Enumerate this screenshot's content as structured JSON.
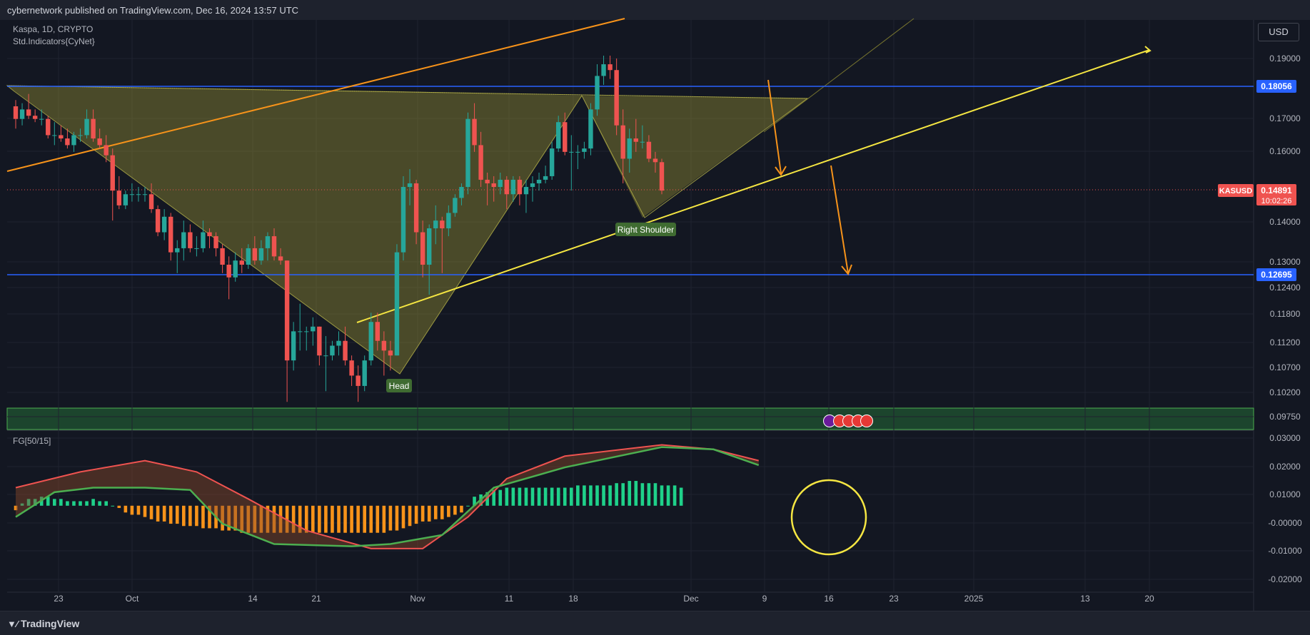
{
  "publisher_line": "cybernetwork published on TradingView.com, Dec 16, 2024 13:57 UTC",
  "brand": "TradingView",
  "currency_button": "USD",
  "symbol_line": "Kaspa, 1D, CRYPTO",
  "indicator_line": "Std.Indicators{CyNet}",
  "oscillator_name": "FG[50/15]",
  "colors": {
    "background": "#131722",
    "up_candle": "#26a69a",
    "down_candle": "#ef5350",
    "pattern_fill": "#8d8a32",
    "orange_line": "#f7931a",
    "yellow_line": "#f5e642",
    "blue_level": "#2962ff",
    "histogram_positive": "#1fd18a",
    "histogram_negative": "#f7931a",
    "osc_red_line": "#ef5350",
    "osc_green_line": "#4caf50"
  },
  "price_axis": {
    "ticks": [
      "0.19000",
      "0.17000",
      "0.16000",
      "0.14000",
      "0.13000",
      "0.12400",
      "0.11800",
      "0.11200",
      "0.10700",
      "0.10200",
      "0.09750"
    ],
    "level_labels": [
      {
        "text": "0.18056",
        "color": "#2962ff"
      },
      {
        "text": "0.12695",
        "color": "#2962ff"
      }
    ],
    "last_price": {
      "symbol": "KASUSD",
      "price": "0.14891",
      "countdown": "10:02:26",
      "color": "#ef5350"
    }
  },
  "osc_axis": {
    "ticks": [
      "0.03000",
      "0.02000",
      "0.01000",
      "-0.00000",
      "-0.01000",
      "-0.02000"
    ]
  },
  "time_axis": {
    "labels": [
      "23",
      "Oct",
      "14",
      "21",
      "Nov",
      "11",
      "18",
      "Dec",
      "9",
      "16",
      "23",
      "2025",
      "13",
      "20"
    ]
  },
  "annotations": {
    "head": "Head",
    "right_shoulder": "Right Shoulder"
  },
  "chart_data": [
    {
      "type": "candlestick",
      "symbol": "KASUSD",
      "interval": "1D",
      "levels": [
        0.18056,
        0.12695
      ],
      "last_price": 0.14891,
      "candles": [
        {
          "o": 0.174,
          "h": 0.176,
          "l": 0.167,
          "c": 0.17
        },
        {
          "o": 0.17,
          "h": 0.175,
          "l": 0.168,
          "c": 0.173
        },
        {
          "o": 0.173,
          "h": 0.178,
          "l": 0.17,
          "c": 0.171
        },
        {
          "o": 0.171,
          "h": 0.173,
          "l": 0.169,
          "c": 0.17
        },
        {
          "o": 0.17,
          "h": 0.173,
          "l": 0.168,
          "c": 0.17
        },
        {
          "o": 0.17,
          "h": 0.171,
          "l": 0.164,
          "c": 0.165
        },
        {
          "o": 0.165,
          "h": 0.169,
          "l": 0.162,
          "c": 0.165
        },
        {
          "o": 0.165,
          "h": 0.168,
          "l": 0.163,
          "c": 0.164
        },
        {
          "o": 0.164,
          "h": 0.167,
          "l": 0.161,
          "c": 0.162
        },
        {
          "o": 0.162,
          "h": 0.166,
          "l": 0.16,
          "c": 0.165
        },
        {
          "o": 0.165,
          "h": 0.167,
          "l": 0.163,
          "c": 0.165
        },
        {
          "o": 0.165,
          "h": 0.173,
          "l": 0.164,
          "c": 0.17
        },
        {
          "o": 0.17,
          "h": 0.173,
          "l": 0.163,
          "c": 0.164
        },
        {
          "o": 0.164,
          "h": 0.167,
          "l": 0.161,
          "c": 0.162
        },
        {
          "o": 0.162,
          "h": 0.165,
          "l": 0.157,
          "c": 0.159
        },
        {
          "o": 0.159,
          "h": 0.161,
          "l": 0.141,
          "c": 0.149
        },
        {
          "o": 0.149,
          "h": 0.153,
          "l": 0.144,
          "c": 0.145
        },
        {
          "o": 0.145,
          "h": 0.149,
          "l": 0.144,
          "c": 0.148
        },
        {
          "o": 0.148,
          "h": 0.151,
          "l": 0.146,
          "c": 0.148
        },
        {
          "o": 0.148,
          "h": 0.15,
          "l": 0.146,
          "c": 0.148
        },
        {
          "o": 0.148,
          "h": 0.15,
          "l": 0.146,
          "c": 0.148
        },
        {
          "o": 0.148,
          "h": 0.151,
          "l": 0.143,
          "c": 0.144
        },
        {
          "o": 0.144,
          "h": 0.145,
          "l": 0.137,
          "c": 0.138
        },
        {
          "o": 0.138,
          "h": 0.144,
          "l": 0.136,
          "c": 0.142
        },
        {
          "o": 0.142,
          "h": 0.143,
          "l": 0.131,
          "c": 0.133
        },
        {
          "o": 0.133,
          "h": 0.136,
          "l": 0.128,
          "c": 0.134
        },
        {
          "o": 0.134,
          "h": 0.141,
          "l": 0.131,
          "c": 0.138
        },
        {
          "o": 0.138,
          "h": 0.14,
          "l": 0.133,
          "c": 0.134
        },
        {
          "o": 0.134,
          "h": 0.137,
          "l": 0.132,
          "c": 0.134
        },
        {
          "o": 0.134,
          "h": 0.141,
          "l": 0.133,
          "c": 0.138
        },
        {
          "o": 0.138,
          "h": 0.139,
          "l": 0.134,
          "c": 0.137
        },
        {
          "o": 0.137,
          "h": 0.138,
          "l": 0.132,
          "c": 0.134
        },
        {
          "o": 0.134,
          "h": 0.135,
          "l": 0.128,
          "c": 0.13
        },
        {
          "o": 0.13,
          "h": 0.132,
          "l": 0.122,
          "c": 0.127
        },
        {
          "o": 0.127,
          "h": 0.133,
          "l": 0.126,
          "c": 0.131
        },
        {
          "o": 0.131,
          "h": 0.134,
          "l": 0.128,
          "c": 0.13
        },
        {
          "o": 0.13,
          "h": 0.135,
          "l": 0.129,
          "c": 0.134
        },
        {
          "o": 0.134,
          "h": 0.137,
          "l": 0.13,
          "c": 0.131
        },
        {
          "o": 0.131,
          "h": 0.136,
          "l": 0.13,
          "c": 0.134
        },
        {
          "o": 0.134,
          "h": 0.138,
          "l": 0.131,
          "c": 0.137
        },
        {
          "o": 0.137,
          "h": 0.139,
          "l": 0.131,
          "c": 0.132
        },
        {
          "o": 0.132,
          "h": 0.134,
          "l": 0.13,
          "c": 0.131
        },
        {
          "o": 0.131,
          "h": 0.131,
          "l": 0.101,
          "c": 0.109
        },
        {
          "o": 0.109,
          "h": 0.117,
          "l": 0.107,
          "c": 0.115
        },
        {
          "o": 0.115,
          "h": 0.121,
          "l": 0.111,
          "c": 0.115
        },
        {
          "o": 0.115,
          "h": 0.116,
          "l": 0.111,
          "c": 0.115
        },
        {
          "o": 0.115,
          "h": 0.118,
          "l": 0.112,
          "c": 0.116
        },
        {
          "o": 0.116,
          "h": 0.116,
          "l": 0.108,
          "c": 0.11
        },
        {
          "o": 0.11,
          "h": 0.114,
          "l": 0.103,
          "c": 0.11
        },
        {
          "o": 0.11,
          "h": 0.113,
          "l": 0.109,
          "c": 0.112
        },
        {
          "o": 0.112,
          "h": 0.115,
          "l": 0.11,
          "c": 0.113
        },
        {
          "o": 0.113,
          "h": 0.116,
          "l": 0.108,
          "c": 0.109
        },
        {
          "o": 0.109,
          "h": 0.11,
          "l": 0.104,
          "c": 0.106
        },
        {
          "o": 0.106,
          "h": 0.108,
          "l": 0.101,
          "c": 0.104
        },
        {
          "o": 0.104,
          "h": 0.11,
          "l": 0.103,
          "c": 0.109
        },
        {
          "o": 0.109,
          "h": 0.119,
          "l": 0.108,
          "c": 0.117
        },
        {
          "o": 0.117,
          "h": 0.119,
          "l": 0.111,
          "c": 0.113
        },
        {
          "o": 0.113,
          "h": 0.115,
          "l": 0.106,
          "c": 0.111
        },
        {
          "o": 0.111,
          "h": 0.113,
          "l": 0.107,
          "c": 0.11
        },
        {
          "o": 0.11,
          "h": 0.135,
          "l": 0.11,
          "c": 0.133
        },
        {
          "o": 0.133,
          "h": 0.153,
          "l": 0.131,
          "c": 0.15
        },
        {
          "o": 0.15,
          "h": 0.155,
          "l": 0.145,
          "c": 0.151
        },
        {
          "o": 0.151,
          "h": 0.152,
          "l": 0.135,
          "c": 0.138
        },
        {
          "o": 0.138,
          "h": 0.141,
          "l": 0.127,
          "c": 0.13
        },
        {
          "o": 0.13,
          "h": 0.14,
          "l": 0.123,
          "c": 0.139
        },
        {
          "o": 0.139,
          "h": 0.145,
          "l": 0.135,
          "c": 0.141
        },
        {
          "o": 0.141,
          "h": 0.142,
          "l": 0.128,
          "c": 0.139
        },
        {
          "o": 0.139,
          "h": 0.145,
          "l": 0.137,
          "c": 0.143
        },
        {
          "o": 0.143,
          "h": 0.148,
          "l": 0.142,
          "c": 0.147
        },
        {
          "o": 0.147,
          "h": 0.151,
          "l": 0.145,
          "c": 0.15
        },
        {
          "o": 0.15,
          "h": 0.172,
          "l": 0.148,
          "c": 0.17
        },
        {
          "o": 0.17,
          "h": 0.175,
          "l": 0.16,
          "c": 0.162
        },
        {
          "o": 0.162,
          "h": 0.166,
          "l": 0.15,
          "c": 0.152
        },
        {
          "o": 0.152,
          "h": 0.154,
          "l": 0.145,
          "c": 0.151
        },
        {
          "o": 0.151,
          "h": 0.153,
          "l": 0.146,
          "c": 0.15
        },
        {
          "o": 0.15,
          "h": 0.154,
          "l": 0.148,
          "c": 0.152
        },
        {
          "o": 0.152,
          "h": 0.153,
          "l": 0.144,
          "c": 0.148
        },
        {
          "o": 0.148,
          "h": 0.153,
          "l": 0.146,
          "c": 0.152
        },
        {
          "o": 0.152,
          "h": 0.153,
          "l": 0.145,
          "c": 0.148
        },
        {
          "o": 0.148,
          "h": 0.152,
          "l": 0.143,
          "c": 0.15
        },
        {
          "o": 0.15,
          "h": 0.153,
          "l": 0.146,
          "c": 0.151
        },
        {
          "o": 0.151,
          "h": 0.154,
          "l": 0.149,
          "c": 0.152
        },
        {
          "o": 0.152,
          "h": 0.156,
          "l": 0.151,
          "c": 0.153
        },
        {
          "o": 0.153,
          "h": 0.163,
          "l": 0.152,
          "c": 0.161
        },
        {
          "o": 0.161,
          "h": 0.171,
          "l": 0.16,
          "c": 0.169
        },
        {
          "o": 0.169,
          "h": 0.172,
          "l": 0.159,
          "c": 0.16
        },
        {
          "o": 0.16,
          "h": 0.165,
          "l": 0.149,
          "c": 0.16
        },
        {
          "o": 0.16,
          "h": 0.162,
          "l": 0.155,
          "c": 0.16
        },
        {
          "o": 0.16,
          "h": 0.163,
          "l": 0.158,
          "c": 0.161
        },
        {
          "o": 0.161,
          "h": 0.175,
          "l": 0.159,
          "c": 0.173
        },
        {
          "o": 0.173,
          "h": 0.188,
          "l": 0.171,
          "c": 0.184
        },
        {
          "o": 0.184,
          "h": 0.191,
          "l": 0.181,
          "c": 0.188
        },
        {
          "o": 0.188,
          "h": 0.191,
          "l": 0.183,
          "c": 0.186
        },
        {
          "o": 0.186,
          "h": 0.19,
          "l": 0.165,
          "c": 0.168
        },
        {
          "o": 0.168,
          "h": 0.173,
          "l": 0.151,
          "c": 0.158
        },
        {
          "o": 0.158,
          "h": 0.167,
          "l": 0.154,
          "c": 0.164
        },
        {
          "o": 0.164,
          "h": 0.17,
          "l": 0.16,
          "c": 0.163
        },
        {
          "o": 0.163,
          "h": 0.168,
          "l": 0.161,
          "c": 0.163
        },
        {
          "o": 0.163,
          "h": 0.165,
          "l": 0.157,
          "c": 0.158
        },
        {
          "o": 0.158,
          "h": 0.16,
          "l": 0.154,
          "c": 0.157
        },
        {
          "o": 0.157,
          "h": 0.158,
          "l": 0.148,
          "c": 0.149
        }
      ],
      "pattern": {
        "name": "inverse head and shoulders",
        "labels": [
          "Head",
          "Right Shoulder"
        ],
        "head_low": 0.106,
        "right_shoulder_low": 0.141,
        "neckline": [
          {
            "bar": 0,
            "price": 0.176
          },
          {
            "bar": 100,
            "price": 0.177
          }
        ]
      },
      "trendlines": [
        {
          "name": "orange",
          "points": [
            {
              "bar": 0,
              "price": 0.154
            },
            {
              "bar": 90,
              "price": 0.2
            }
          ]
        },
        {
          "name": "yellow",
          "points": [
            {
              "bar": 43,
              "price": 0.117
            },
            {
              "bar": 102,
              "price": 0.163
            }
          ]
        }
      ],
      "projected_arrows": [
        {
          "name": "yellow",
          "from": {
            "bar": 43,
            "price": 0.117
          },
          "to": {
            "bar": 141,
            "price": 0.193
          }
        },
        {
          "name": "orange-drop",
          "from": {
            "bar": 102,
            "price": 0.157
          },
          "to": {
            "bar": 105,
            "price": 0.127
          }
        }
      ]
    },
    {
      "type": "oscillator",
      "name": "FG[50/15]",
      "ylim": [
        -0.0235,
        0.0305
      ],
      "histogram": [
        -0.002,
        0.001,
        0.003,
        0.003,
        0.004,
        0.004,
        0.003,
        0.003,
        0.002,
        0.002,
        0.002,
        0.002,
        0.003,
        0.002,
        0.002,
        0.0,
        -0.001,
        -0.003,
        -0.004,
        -0.004,
        -0.005,
        -0.006,
        -0.007,
        -0.007,
        -0.008,
        -0.008,
        -0.009,
        -0.009,
        -0.009,
        -0.01,
        -0.01,
        -0.01,
        -0.011,
        -0.011,
        -0.011,
        -0.012,
        -0.012,
        -0.012,
        -0.012,
        -0.012,
        -0.012,
        -0.012,
        -0.012,
        -0.012,
        -0.012,
        -0.012,
        -0.012,
        -0.012,
        -0.012,
        -0.012,
        -0.012,
        -0.012,
        -0.012,
        -0.012,
        -0.012,
        -0.012,
        -0.012,
        -0.012,
        -0.011,
        -0.011,
        -0.01,
        -0.009,
        -0.008,
        -0.007,
        -0.007,
        -0.006,
        -0.006,
        -0.005,
        -0.004,
        -0.003,
        0.0,
        0.004,
        0.005,
        0.006,
        0.007,
        0.007,
        0.008,
        0.008,
        0.008,
        0.008,
        0.008,
        0.008,
        0.008,
        0.008,
        0.008,
        0.008,
        0.008,
        0.009,
        0.009,
        0.009,
        0.009,
        0.009,
        0.009,
        0.01,
        0.01,
        0.011,
        0.011,
        0.01,
        0.01,
        0.01,
        0.009,
        0.009,
        0.009,
        0.008
      ],
      "series": [
        {
          "name": "red",
          "points": [
            [
              0,
              0.008
            ],
            [
              10,
              0.015
            ],
            [
              20,
              0.02
            ],
            [
              28,
              0.015
            ],
            [
              36,
              0.003
            ],
            [
              45,
              -0.011
            ],
            [
              55,
              -0.019
            ],
            [
              63,
              -0.019
            ],
            [
              70,
              -0.005
            ],
            [
              76,
              0.012
            ],
            [
              85,
              0.022
            ],
            [
              100,
              0.027
            ],
            [
              108,
              0.025
            ],
            [
              115,
              0.02
            ]
          ]
        },
        {
          "name": "green",
          "points": [
            [
              0,
              -0.005
            ],
            [
              6,
              0.006
            ],
            [
              12,
              0.008
            ],
            [
              20,
              0.008
            ],
            [
              27,
              0.007
            ],
            [
              32,
              -0.008
            ],
            [
              40,
              -0.017
            ],
            [
              52,
              -0.018
            ],
            [
              58,
              -0.017
            ],
            [
              66,
              -0.013
            ],
            [
              74,
              0.008
            ],
            [
              85,
              0.017
            ],
            [
              100,
              0.026
            ],
            [
              108,
              0.025
            ],
            [
              115,
              0.018
            ]
          ]
        }
      ]
    }
  ]
}
